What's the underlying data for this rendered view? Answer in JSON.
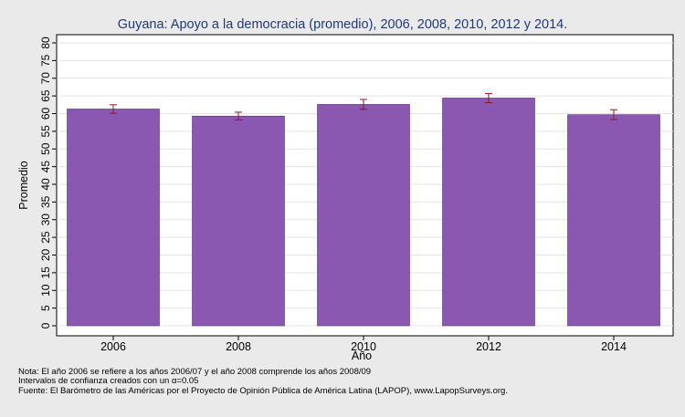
{
  "chart_data": {
    "type": "bar",
    "title": "Guyana: Apoyo a la democracia (promedio), 2006, 2008, 2010, 2012 y 2014.",
    "xlabel": "Año",
    "ylabel": "Promedio",
    "categories": [
      "2006",
      "2008",
      "2010",
      "2012",
      "2014"
    ],
    "values": [
      61.3,
      59.3,
      62.6,
      64.4,
      59.7
    ],
    "error_low": [
      60.1,
      58.2,
      61.2,
      63.1,
      58.3
    ],
    "error_high": [
      62.5,
      60.4,
      64.0,
      65.7,
      61.1
    ],
    "ylim": [
      0,
      80
    ],
    "yticks": [
      0,
      5,
      10,
      15,
      20,
      25,
      30,
      35,
      40,
      45,
      50,
      55,
      60,
      65,
      70,
      75,
      80
    ],
    "grid": true,
    "colors": {
      "bar": "#8b58b1",
      "bar_stroke": "#5a2e7a",
      "error": "#8b1a1a",
      "title": "#1f3a78",
      "plot_bg": "#ffffff",
      "outer_bg": "#eaeaea",
      "grid": "#e3e3e3"
    }
  },
  "notes": [
    "Nota: El año 2006 se refiere a los años 2006/07 y el año 2008 comprende los años 2008/09",
    "Intervalos de confianza creados con un α=0.05",
    "Fuente: El Barómetro de las Américas por el Proyecto de Opinión Pública de América Latina (LAPOP), www.LapopSurveys.org."
  ]
}
